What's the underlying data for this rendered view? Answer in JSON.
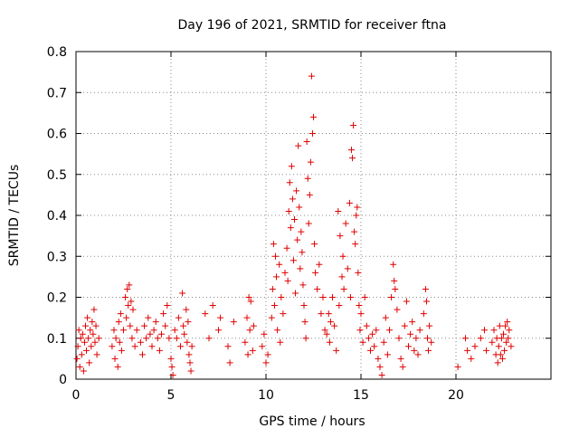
{
  "chart_data": {
    "type": "scatter",
    "title": "Day 196 of 2021, SRMTID for receiver ftna",
    "xlabel": "GPS time / hours",
    "ylabel": "SRMTID / TECUs",
    "xlim": [
      0,
      25
    ],
    "ylim": [
      0,
      0.8
    ],
    "x_ticks": [
      0,
      5,
      10,
      15,
      20
    ],
    "y_ticks": [
      0,
      0.1,
      0.2,
      0.3,
      0.4,
      0.5,
      0.6,
      0.7,
      0.8
    ],
    "x_tick_labels": [
      "0",
      "5",
      "10",
      "15",
      "20"
    ],
    "y_tick_labels": [
      "0",
      "0.1",
      "0.2",
      "0.3",
      "0.4",
      "0.5",
      "0.6",
      "0.7",
      "0.8"
    ],
    "grid": true,
    "marker": "+",
    "series": [
      {
        "name": "SRMTID",
        "color": "#e00000",
        "points": [
          [
            0.05,
            0.05
          ],
          [
            0.1,
            0.08
          ],
          [
            0.15,
            0.12
          ],
          [
            0.2,
            0.03
          ],
          [
            0.25,
            0.1
          ],
          [
            0.3,
            0.06
          ],
          [
            0.35,
            0.11
          ],
          [
            0.4,
            0.02
          ],
          [
            0.45,
            0.09
          ],
          [
            0.5,
            0.13
          ],
          [
            0.55,
            0.07
          ],
          [
            0.6,
            0.15
          ],
          [
            0.65,
            0.1
          ],
          [
            0.7,
            0.04
          ],
          [
            0.75,
            0.12
          ],
          [
            0.8,
            0.08
          ],
          [
            0.85,
            0.14
          ],
          [
            0.9,
            0.11
          ],
          [
            0.95,
            0.17
          ],
          [
            1.0,
            0.09
          ],
          [
            1.05,
            0.13
          ],
          [
            1.1,
            0.06
          ],
          [
            1.2,
            0.1
          ],
          [
            1.9,
            0.08
          ],
          [
            2.0,
            0.12
          ],
          [
            2.05,
            0.05
          ],
          [
            2.1,
            0.1
          ],
          [
            2.2,
            0.03
          ],
          [
            2.25,
            0.14
          ],
          [
            2.3,
            0.09
          ],
          [
            2.35,
            0.16
          ],
          [
            2.4,
            0.07
          ],
          [
            2.5,
            0.12
          ],
          [
            2.6,
            0.2
          ],
          [
            2.65,
            0.15
          ],
          [
            2.7,
            0.22
          ],
          [
            2.75,
            0.18
          ],
          [
            2.8,
            0.23
          ],
          [
            2.85,
            0.13
          ],
          [
            2.9,
            0.19
          ],
          [
            2.95,
            0.1
          ],
          [
            3.0,
            0.17
          ],
          [
            3.1,
            0.08
          ],
          [
            3.2,
            0.12
          ],
          [
            3.4,
            0.09
          ],
          [
            3.5,
            0.06
          ],
          [
            3.6,
            0.13
          ],
          [
            3.7,
            0.1
          ],
          [
            3.8,
            0.15
          ],
          [
            3.9,
            0.11
          ],
          [
            4.0,
            0.08
          ],
          [
            4.1,
            0.12
          ],
          [
            4.2,
            0.14
          ],
          [
            4.3,
            0.1
          ],
          [
            4.4,
            0.07
          ],
          [
            4.5,
            0.11
          ],
          [
            4.6,
            0.16
          ],
          [
            4.7,
            0.13
          ],
          [
            4.8,
            0.18
          ],
          [
            4.9,
            0.1
          ],
          [
            5.0,
            0.05
          ],
          [
            5.05,
            0.03
          ],
          [
            5.1,
            0.01
          ],
          [
            5.2,
            0.12
          ],
          [
            5.3,
            0.1
          ],
          [
            5.4,
            0.15
          ],
          [
            5.5,
            0.08
          ],
          [
            5.6,
            0.21
          ],
          [
            5.65,
            0.13
          ],
          [
            5.7,
            0.11
          ],
          [
            5.8,
            0.17
          ],
          [
            5.85,
            0.09
          ],
          [
            5.9,
            0.14
          ],
          [
            5.95,
            0.06
          ],
          [
            6.0,
            0.04
          ],
          [
            6.05,
            0.02
          ],
          [
            6.1,
            0.08
          ],
          [
            6.8,
            0.16
          ],
          [
            7.0,
            0.1
          ],
          [
            7.2,
            0.18
          ],
          [
            7.5,
            0.12
          ],
          [
            7.6,
            0.15
          ],
          [
            8.0,
            0.08
          ],
          [
            8.1,
            0.04
          ],
          [
            8.3,
            0.14
          ],
          [
            8.9,
            0.09
          ],
          [
            9.0,
            0.15
          ],
          [
            9.05,
            0.06
          ],
          [
            9.1,
            0.2
          ],
          [
            9.15,
            0.12
          ],
          [
            9.2,
            0.19
          ],
          [
            9.3,
            0.07
          ],
          [
            9.35,
            0.13
          ],
          [
            9.8,
            0.08
          ],
          [
            9.9,
            0.11
          ],
          [
            10.0,
            0.04
          ],
          [
            10.1,
            0.06
          ],
          [
            10.3,
            0.15
          ],
          [
            10.35,
            0.22
          ],
          [
            10.4,
            0.33
          ],
          [
            10.45,
            0.18
          ],
          [
            10.5,
            0.3
          ],
          [
            10.55,
            0.25
          ],
          [
            10.6,
            0.12
          ],
          [
            10.7,
            0.28
          ],
          [
            10.75,
            0.09
          ],
          [
            10.8,
            0.2
          ],
          [
            10.9,
            0.16
          ],
          [
            11.0,
            0.26
          ],
          [
            11.1,
            0.32
          ],
          [
            11.15,
            0.24
          ],
          [
            11.2,
            0.41
          ],
          [
            11.25,
            0.48
          ],
          [
            11.3,
            0.37
          ],
          [
            11.35,
            0.52
          ],
          [
            11.4,
            0.44
          ],
          [
            11.45,
            0.29
          ],
          [
            11.5,
            0.39
          ],
          [
            11.55,
            0.21
          ],
          [
            11.6,
            0.46
          ],
          [
            11.65,
            0.34
          ],
          [
            11.7,
            0.57
          ],
          [
            11.75,
            0.42
          ],
          [
            11.8,
            0.27
          ],
          [
            11.85,
            0.36
          ],
          [
            11.9,
            0.31
          ],
          [
            11.95,
            0.23
          ],
          [
            12.0,
            0.18
          ],
          [
            12.05,
            0.14
          ],
          [
            12.1,
            0.1
          ],
          [
            12.15,
            0.58
          ],
          [
            12.2,
            0.49
          ],
          [
            12.25,
            0.38
          ],
          [
            12.3,
            0.45
          ],
          [
            12.35,
            0.53
          ],
          [
            12.4,
            0.74
          ],
          [
            12.45,
            0.6
          ],
          [
            12.5,
            0.64
          ],
          [
            12.55,
            0.33
          ],
          [
            12.6,
            0.26
          ],
          [
            12.7,
            0.22
          ],
          [
            12.8,
            0.28
          ],
          [
            12.9,
            0.16
          ],
          [
            13.0,
            0.2
          ],
          [
            13.1,
            0.12
          ],
          [
            13.2,
            0.11
          ],
          [
            13.3,
            0.16
          ],
          [
            13.35,
            0.09
          ],
          [
            13.4,
            0.14
          ],
          [
            13.5,
            0.2
          ],
          [
            13.6,
            0.13
          ],
          [
            13.7,
            0.07
          ],
          [
            13.8,
            0.41
          ],
          [
            13.85,
            0.18
          ],
          [
            13.9,
            0.35
          ],
          [
            14.0,
            0.25
          ],
          [
            14.05,
            0.3
          ],
          [
            14.1,
            0.22
          ],
          [
            14.2,
            0.38
          ],
          [
            14.3,
            0.27
          ],
          [
            14.4,
            0.43
          ],
          [
            14.45,
            0.2
          ],
          [
            14.5,
            0.56
          ],
          [
            14.55,
            0.54
          ],
          [
            14.6,
            0.62
          ],
          [
            14.65,
            0.36
          ],
          [
            14.7,
            0.33
          ],
          [
            14.75,
            0.4
          ],
          [
            14.8,
            0.42
          ],
          [
            14.85,
            0.26
          ],
          [
            14.9,
            0.18
          ],
          [
            14.95,
            0.12
          ],
          [
            15.0,
            0.16
          ],
          [
            15.1,
            0.09
          ],
          [
            15.2,
            0.2
          ],
          [
            15.3,
            0.13
          ],
          [
            15.4,
            0.1
          ],
          [
            15.5,
            0.07
          ],
          [
            15.6,
            0.11
          ],
          [
            15.7,
            0.08
          ],
          [
            15.8,
            0.12
          ],
          [
            15.9,
            0.05
          ],
          [
            16.0,
            0.03
          ],
          [
            16.1,
            0.01
          ],
          [
            16.2,
            0.09
          ],
          [
            16.3,
            0.15
          ],
          [
            16.4,
            0.06
          ],
          [
            16.5,
            0.12
          ],
          [
            16.6,
            0.2
          ],
          [
            16.7,
            0.28
          ],
          [
            16.75,
            0.24
          ],
          [
            16.8,
            0.22
          ],
          [
            16.9,
            0.17
          ],
          [
            17.0,
            0.1
          ],
          [
            17.1,
            0.05
          ],
          [
            17.2,
            0.03
          ],
          [
            17.3,
            0.13
          ],
          [
            17.4,
            0.19
          ],
          [
            17.5,
            0.08
          ],
          [
            17.6,
            0.11
          ],
          [
            17.7,
            0.14
          ],
          [
            17.8,
            0.07
          ],
          [
            17.9,
            0.1
          ],
          [
            18.0,
            0.06
          ],
          [
            18.1,
            0.12
          ],
          [
            18.3,
            0.16
          ],
          [
            18.4,
            0.22
          ],
          [
            18.45,
            0.19
          ],
          [
            18.5,
            0.1
          ],
          [
            18.55,
            0.07
          ],
          [
            18.6,
            0.13
          ],
          [
            18.7,
            0.09
          ],
          [
            20.1,
            0.03
          ],
          [
            20.5,
            0.1
          ],
          [
            20.6,
            0.07
          ],
          [
            20.8,
            0.05
          ],
          [
            21.0,
            0.08
          ],
          [
            21.3,
            0.1
          ],
          [
            21.5,
            0.12
          ],
          [
            21.6,
            0.07
          ],
          [
            21.9,
            0.09
          ],
          [
            22.0,
            0.12
          ],
          [
            22.1,
            0.06
          ],
          [
            22.15,
            0.1
          ],
          [
            22.2,
            0.04
          ],
          [
            22.25,
            0.08
          ],
          [
            22.3,
            0.13
          ],
          [
            22.35,
            0.06
          ],
          [
            22.4,
            0.1
          ],
          [
            22.45,
            0.05
          ],
          [
            22.5,
            0.11
          ],
          [
            22.55,
            0.07
          ],
          [
            22.6,
            0.13
          ],
          [
            22.65,
            0.09
          ],
          [
            22.7,
            0.14
          ],
          [
            22.75,
            0.1
          ],
          [
            22.8,
            0.12
          ],
          [
            22.9,
            0.08
          ]
        ]
      }
    ]
  }
}
